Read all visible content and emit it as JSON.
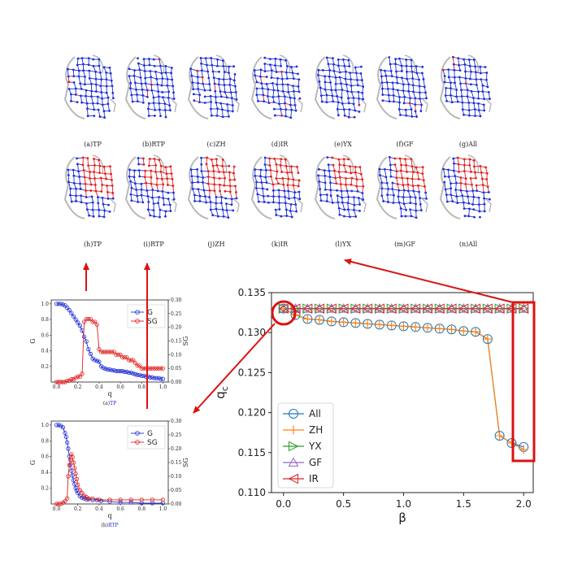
{
  "colors": {
    "blue": "#1f2fd6",
    "red": "#e02020",
    "gray": "#b8b8b8",
    "arrow": "#dd1111",
    "all": "#1f77b4",
    "zh": "#ff7f0e",
    "yx": "#2ca02c",
    "gf": "#9467bd",
    "ir": "#d62728"
  },
  "network_panels": {
    "row1": [
      "(a)TP",
      "(b)RTP",
      "(c)ZH",
      "(d)IR",
      "(e)YX",
      "(f)GF",
      "(g)All"
    ],
    "row2": [
      "(h)TP",
      "(i)RTP",
      "(j)ZH",
      "(k)IR",
      "(l)YX",
      "(m)GF",
      "(n)All"
    ],
    "row1_red_share": [
      0.02,
      0.03,
      0.04,
      0.02,
      0.01,
      0.02,
      0.03
    ],
    "row2_red_share": [
      0.55,
      0.45,
      0.55,
      0.5,
      0.45,
      0.5,
      0.5
    ]
  },
  "chart_data": [
    {
      "id": "main",
      "type": "line",
      "xlabel": "β",
      "ylabel": "qc",
      "ylabel_main": "q",
      "ylabel_sub": "c",
      "xlim": [
        -0.1,
        2.08
      ],
      "ylim": [
        0.11,
        0.135
      ],
      "xticks": [
        "0.0",
        "0.5",
        "1.0",
        "1.5",
        "2.0"
      ],
      "yticks": [
        "0.110",
        "0.115",
        "0.120",
        "0.125",
        "0.130",
        "0.135"
      ],
      "legend_position": "lower-left",
      "x": [
        0.0,
        0.1,
        0.2,
        0.3,
        0.4,
        0.5,
        0.6,
        0.7,
        0.8,
        0.9,
        1.0,
        1.1,
        1.2,
        1.3,
        1.4,
        1.5,
        1.6,
        1.7,
        1.8,
        1.9,
        2.0
      ],
      "series": [
        {
          "name": "All",
          "marker": "circle",
          "color": "#1f77b4",
          "values": [
            0.133,
            0.1322,
            0.1317,
            0.1316,
            0.1314,
            0.1313,
            0.1312,
            0.1311,
            0.131,
            0.1309,
            0.1308,
            0.1307,
            0.1306,
            0.1305,
            0.1304,
            0.1302,
            0.1301,
            0.1292,
            0.1171,
            0.1162,
            0.1157
          ]
        },
        {
          "name": "ZH",
          "marker": "plus",
          "color": "#ff7f0e",
          "values": [
            0.133,
            0.1322,
            0.1317,
            0.1316,
            0.1314,
            0.1313,
            0.1312,
            0.1311,
            0.131,
            0.1309,
            0.1308,
            0.1307,
            0.1306,
            0.1305,
            0.1304,
            0.1302,
            0.1301,
            0.1292,
            0.1171,
            0.1162,
            0.1154
          ]
        },
        {
          "name": "YX",
          "marker": "triangle-right",
          "color": "#2ca02c",
          "values": [
            0.133,
            0.133,
            0.133,
            0.133,
            0.133,
            0.133,
            0.133,
            0.133,
            0.133,
            0.133,
            0.133,
            0.133,
            0.133,
            0.133,
            0.133,
            0.133,
            0.133,
            0.133,
            0.133,
            0.133,
            0.133
          ]
        },
        {
          "name": "GF",
          "marker": "triangle-up",
          "color": "#9467bd",
          "values": [
            0.133,
            0.133,
            0.133,
            0.133,
            0.133,
            0.133,
            0.133,
            0.133,
            0.133,
            0.133,
            0.133,
            0.133,
            0.133,
            0.133,
            0.133,
            0.133,
            0.133,
            0.133,
            0.133,
            0.133,
            0.133
          ]
        },
        {
          "name": "IR",
          "marker": "triangle-left",
          "color": "#d62728",
          "values": [
            0.133,
            0.133,
            0.133,
            0.133,
            0.133,
            0.133,
            0.133,
            0.133,
            0.133,
            0.133,
            0.133,
            0.133,
            0.133,
            0.133,
            0.133,
            0.133,
            0.133,
            0.133,
            0.133,
            0.133,
            0.133
          ]
        }
      ]
    },
    {
      "id": "tp",
      "type": "line",
      "caption_prefix": "(a)",
      "caption_name": "TP",
      "xlabel": "q",
      "ylabel": "G",
      "ylabel_right": "SG",
      "xlim": [
        -0.05,
        1.05
      ],
      "ylim": [
        0,
        1.05
      ],
      "ylim_right": [
        0,
        0.3
      ],
      "xticks": [
        "0.0",
        "0.2",
        "0.4",
        "0.6",
        "0.8",
        "1.0"
      ],
      "yticks": [
        "0.2",
        "0.4",
        "0.6",
        "0.8",
        "1.0"
      ],
      "yticks_right": [
        "0.00",
        "0.05",
        "0.10",
        "0.15",
        "0.20",
        "0.25",
        "0.30"
      ],
      "legend_position": "top-right",
      "series": [
        {
          "name": "G",
          "axis": "left",
          "color": "#1f2fd6",
          "points": [
            [
              0.0,
              1.0
            ],
            [
              0.02,
              1.0
            ],
            [
              0.04,
              1.0
            ],
            [
              0.06,
              0.99
            ],
            [
              0.08,
              0.98
            ],
            [
              0.1,
              0.95
            ],
            [
              0.12,
              0.92
            ],
            [
              0.14,
              0.88
            ],
            [
              0.16,
              0.84
            ],
            [
              0.18,
              0.8
            ],
            [
              0.2,
              0.76
            ],
            [
              0.22,
              0.72
            ],
            [
              0.24,
              0.66
            ],
            [
              0.26,
              0.58
            ],
            [
              0.28,
              0.52
            ],
            [
              0.3,
              0.42
            ],
            [
              0.32,
              0.36
            ],
            [
              0.34,
              0.3
            ],
            [
              0.36,
              0.28
            ],
            [
              0.38,
              0.27
            ],
            [
              0.4,
              0.26
            ],
            [
              0.42,
              0.2
            ],
            [
              0.44,
              0.18
            ],
            [
              0.46,
              0.17
            ],
            [
              0.48,
              0.16
            ],
            [
              0.5,
              0.16
            ],
            [
              0.52,
              0.15
            ],
            [
              0.54,
              0.15
            ],
            [
              0.56,
              0.14
            ],
            [
              0.58,
              0.14
            ],
            [
              0.6,
              0.14
            ],
            [
              0.62,
              0.14
            ],
            [
              0.64,
              0.13
            ],
            [
              0.66,
              0.13
            ],
            [
              0.68,
              0.12
            ],
            [
              0.7,
              0.12
            ],
            [
              0.72,
              0.11
            ],
            [
              0.74,
              0.1
            ],
            [
              0.76,
              0.09
            ],
            [
              0.78,
              0.09
            ],
            [
              0.8,
              0.08
            ],
            [
              0.82,
              0.08
            ],
            [
              0.84,
              0.07
            ],
            [
              0.86,
              0.07
            ],
            [
              0.88,
              0.06
            ],
            [
              0.9,
              0.06
            ],
            [
              0.92,
              0.05
            ],
            [
              0.94,
              0.05
            ],
            [
              0.96,
              0.05
            ],
            [
              0.98,
              0.04
            ],
            [
              1.0,
              0.04
            ]
          ]
        },
        {
          "name": "SG",
          "axis": "right",
          "color": "#e02020",
          "points": [
            [
              0.0,
              0.0
            ],
            [
              0.02,
              0.0
            ],
            [
              0.04,
              0.0
            ],
            [
              0.06,
              0.0
            ],
            [
              0.08,
              0.0
            ],
            [
              0.1,
              0.005
            ],
            [
              0.12,
              0.005
            ],
            [
              0.14,
              0.01
            ],
            [
              0.16,
              0.01
            ],
            [
              0.18,
              0.015
            ],
            [
              0.2,
              0.02
            ],
            [
              0.22,
              0.02
            ],
            [
              0.24,
              0.03
            ],
            [
              0.26,
              0.22
            ],
            [
              0.28,
              0.23
            ],
            [
              0.3,
              0.23
            ],
            [
              0.32,
              0.23
            ],
            [
              0.34,
              0.22
            ],
            [
              0.36,
              0.22
            ],
            [
              0.38,
              0.21
            ],
            [
              0.4,
              0.12
            ],
            [
              0.42,
              0.11
            ],
            [
              0.44,
              0.11
            ],
            [
              0.46,
              0.11
            ],
            [
              0.48,
              0.11
            ],
            [
              0.5,
              0.11
            ],
            [
              0.52,
              0.11
            ],
            [
              0.54,
              0.11
            ],
            [
              0.56,
              0.1
            ],
            [
              0.58,
              0.1
            ],
            [
              0.6,
              0.1
            ],
            [
              0.62,
              0.09
            ],
            [
              0.64,
              0.09
            ],
            [
              0.66,
              0.09
            ],
            [
              0.68,
              0.08
            ],
            [
              0.7,
              0.08
            ],
            [
              0.72,
              0.08
            ],
            [
              0.74,
              0.07
            ],
            [
              0.76,
              0.06
            ],
            [
              0.78,
              0.06
            ],
            [
              0.8,
              0.05
            ],
            [
              0.82,
              0.05
            ],
            [
              0.84,
              0.05
            ],
            [
              0.86,
              0.05
            ],
            [
              0.88,
              0.05
            ],
            [
              0.9,
              0.05
            ],
            [
              0.92,
              0.05
            ],
            [
              0.94,
              0.05
            ],
            [
              0.96,
              0.05
            ],
            [
              0.98,
              0.05
            ],
            [
              1.0,
              0.05
            ]
          ]
        }
      ]
    },
    {
      "id": "rtp",
      "type": "line",
      "caption_prefix": "(b)",
      "caption_name": "RTP",
      "xlabel": "q",
      "ylabel": "G",
      "ylabel_right": "SG",
      "xlim": [
        -0.05,
        1.05
      ],
      "ylim": [
        0,
        1.05
      ],
      "ylim_right": [
        0,
        0.3
      ],
      "xticks": [
        "0.0",
        "0.2",
        "0.4",
        "0.6",
        "0.8",
        "1.0"
      ],
      "yticks": [
        "0.2",
        "0.4",
        "0.6",
        "0.8",
        "1.0"
      ],
      "yticks_right": [
        "0.00",
        "0.05",
        "0.10",
        "0.15",
        "0.20",
        "0.25",
        "0.30"
      ],
      "legend_position": "top-right",
      "series": [
        {
          "name": "G",
          "axis": "left",
          "color": "#1f2fd6",
          "points": [
            [
              0.0,
              1.0
            ],
            [
              0.02,
              1.0
            ],
            [
              0.04,
              0.99
            ],
            [
              0.06,
              0.97
            ],
            [
              0.08,
              0.9
            ],
            [
              0.09,
              0.85
            ],
            [
              0.1,
              0.78
            ],
            [
              0.11,
              0.7
            ],
            [
              0.12,
              0.6
            ],
            [
              0.13,
              0.5
            ],
            [
              0.14,
              0.42
            ],
            [
              0.15,
              0.36
            ],
            [
              0.16,
              0.3
            ],
            [
              0.17,
              0.25
            ],
            [
              0.18,
              0.2
            ],
            [
              0.19,
              0.17
            ],
            [
              0.2,
              0.14
            ],
            [
              0.22,
              0.1
            ],
            [
              0.24,
              0.08
            ],
            [
              0.26,
              0.07
            ],
            [
              0.28,
              0.06
            ],
            [
              0.3,
              0.06
            ],
            [
              0.34,
              0.05
            ],
            [
              0.38,
              0.05
            ],
            [
              0.42,
              0.04
            ],
            [
              0.5,
              0.03
            ],
            [
              0.6,
              0.02
            ],
            [
              0.7,
              0.02
            ],
            [
              0.8,
              0.01
            ],
            [
              0.9,
              0.01
            ],
            [
              1.0,
              0.01
            ]
          ]
        },
        {
          "name": "SG",
          "axis": "right",
          "color": "#e02020",
          "points": [
            [
              0.0,
              0.0
            ],
            [
              0.02,
              0.0
            ],
            [
              0.04,
              0.0
            ],
            [
              0.06,
              0.005
            ],
            [
              0.08,
              0.01
            ],
            [
              0.1,
              0.02
            ],
            [
              0.11,
              0.1
            ],
            [
              0.12,
              0.14
            ],
            [
              0.13,
              0.16
            ],
            [
              0.14,
              0.18
            ],
            [
              0.15,
              0.17
            ],
            [
              0.16,
              0.15
            ],
            [
              0.17,
              0.13
            ],
            [
              0.18,
              0.11
            ],
            [
              0.19,
              0.09
            ],
            [
              0.2,
              0.07
            ],
            [
              0.22,
              0.05
            ],
            [
              0.24,
              0.04
            ],
            [
              0.26,
              0.03
            ],
            [
              0.28,
              0.025
            ],
            [
              0.3,
              0.02
            ],
            [
              0.34,
              0.02
            ],
            [
              0.4,
              0.015
            ],
            [
              0.5,
              0.015
            ],
            [
              0.6,
              0.015
            ],
            [
              0.7,
              0.015
            ],
            [
              0.8,
              0.015
            ],
            [
              0.9,
              0.015
            ],
            [
              1.0,
              0.015
            ]
          ]
        }
      ]
    }
  ]
}
